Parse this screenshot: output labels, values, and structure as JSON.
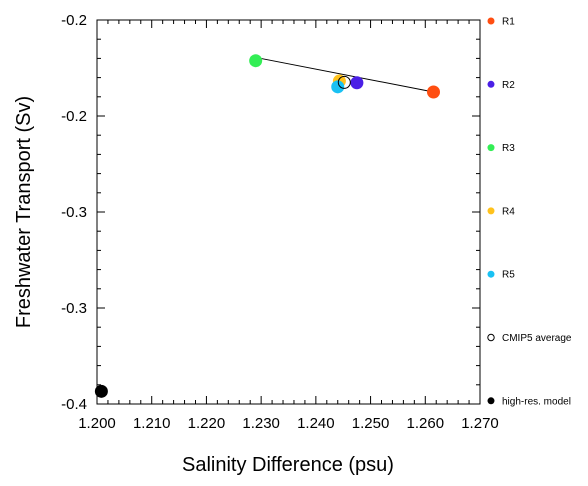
{
  "chart_data": {
    "type": "scatter",
    "title": "",
    "xlabel": "Salinity Difference (psu)",
    "ylabel": "Freshwater Transport (Sv)",
    "xlim": [
      1.2,
      1.27
    ],
    "ylim": [
      -0.4,
      -0.2
    ],
    "x_ticks": [
      1.2,
      1.21,
      1.22,
      1.23,
      1.24,
      1.25,
      1.26,
      1.27
    ],
    "x_tick_labels": [
      "1.200",
      "1.210",
      "1.220",
      "1.230",
      "1.240",
      "1.250",
      "1.260",
      "1.270"
    ],
    "y_ticks": [
      -0.2,
      -0.25,
      -0.3,
      -0.35,
      -0.4
    ],
    "y_tick_labels": [
      "-0.2",
      "-0.2",
      "-0.3",
      "-0.3",
      "-0.4"
    ],
    "series": [
      {
        "name": "R1",
        "color": "#ff4e11",
        "marker": "filled-circle",
        "x": 1.2615,
        "y": -0.2375
      },
      {
        "name": "R2",
        "color": "#4a1fe6",
        "marker": "filled-circle",
        "x": 1.2475,
        "y": -0.2327
      },
      {
        "name": "R3",
        "color": "#33ee55",
        "marker": "filled-circle",
        "x": 1.229,
        "y": -0.2212
      },
      {
        "name": "R4",
        "color": "#ffc21c",
        "marker": "filled-circle",
        "x": 1.2443,
        "y": -0.2318
      },
      {
        "name": "R5",
        "color": "#19c1f3",
        "marker": "filled-circle",
        "x": 1.244,
        "y": -0.2348
      },
      {
        "name": "CMIP5 average",
        "color": "#000000",
        "marker": "open-circle",
        "x": 1.2452,
        "y": -0.2325
      },
      {
        "name": "high-res. model",
        "color": "#000000",
        "marker": "filled-circle",
        "x": 1.2008,
        "y": -0.3934
      }
    ],
    "regression_line": {
      "x": [
        1.229,
        1.2615
      ],
      "y": [
        -0.2195,
        -0.2375
      ]
    },
    "grid": false,
    "legend_position": "right"
  }
}
